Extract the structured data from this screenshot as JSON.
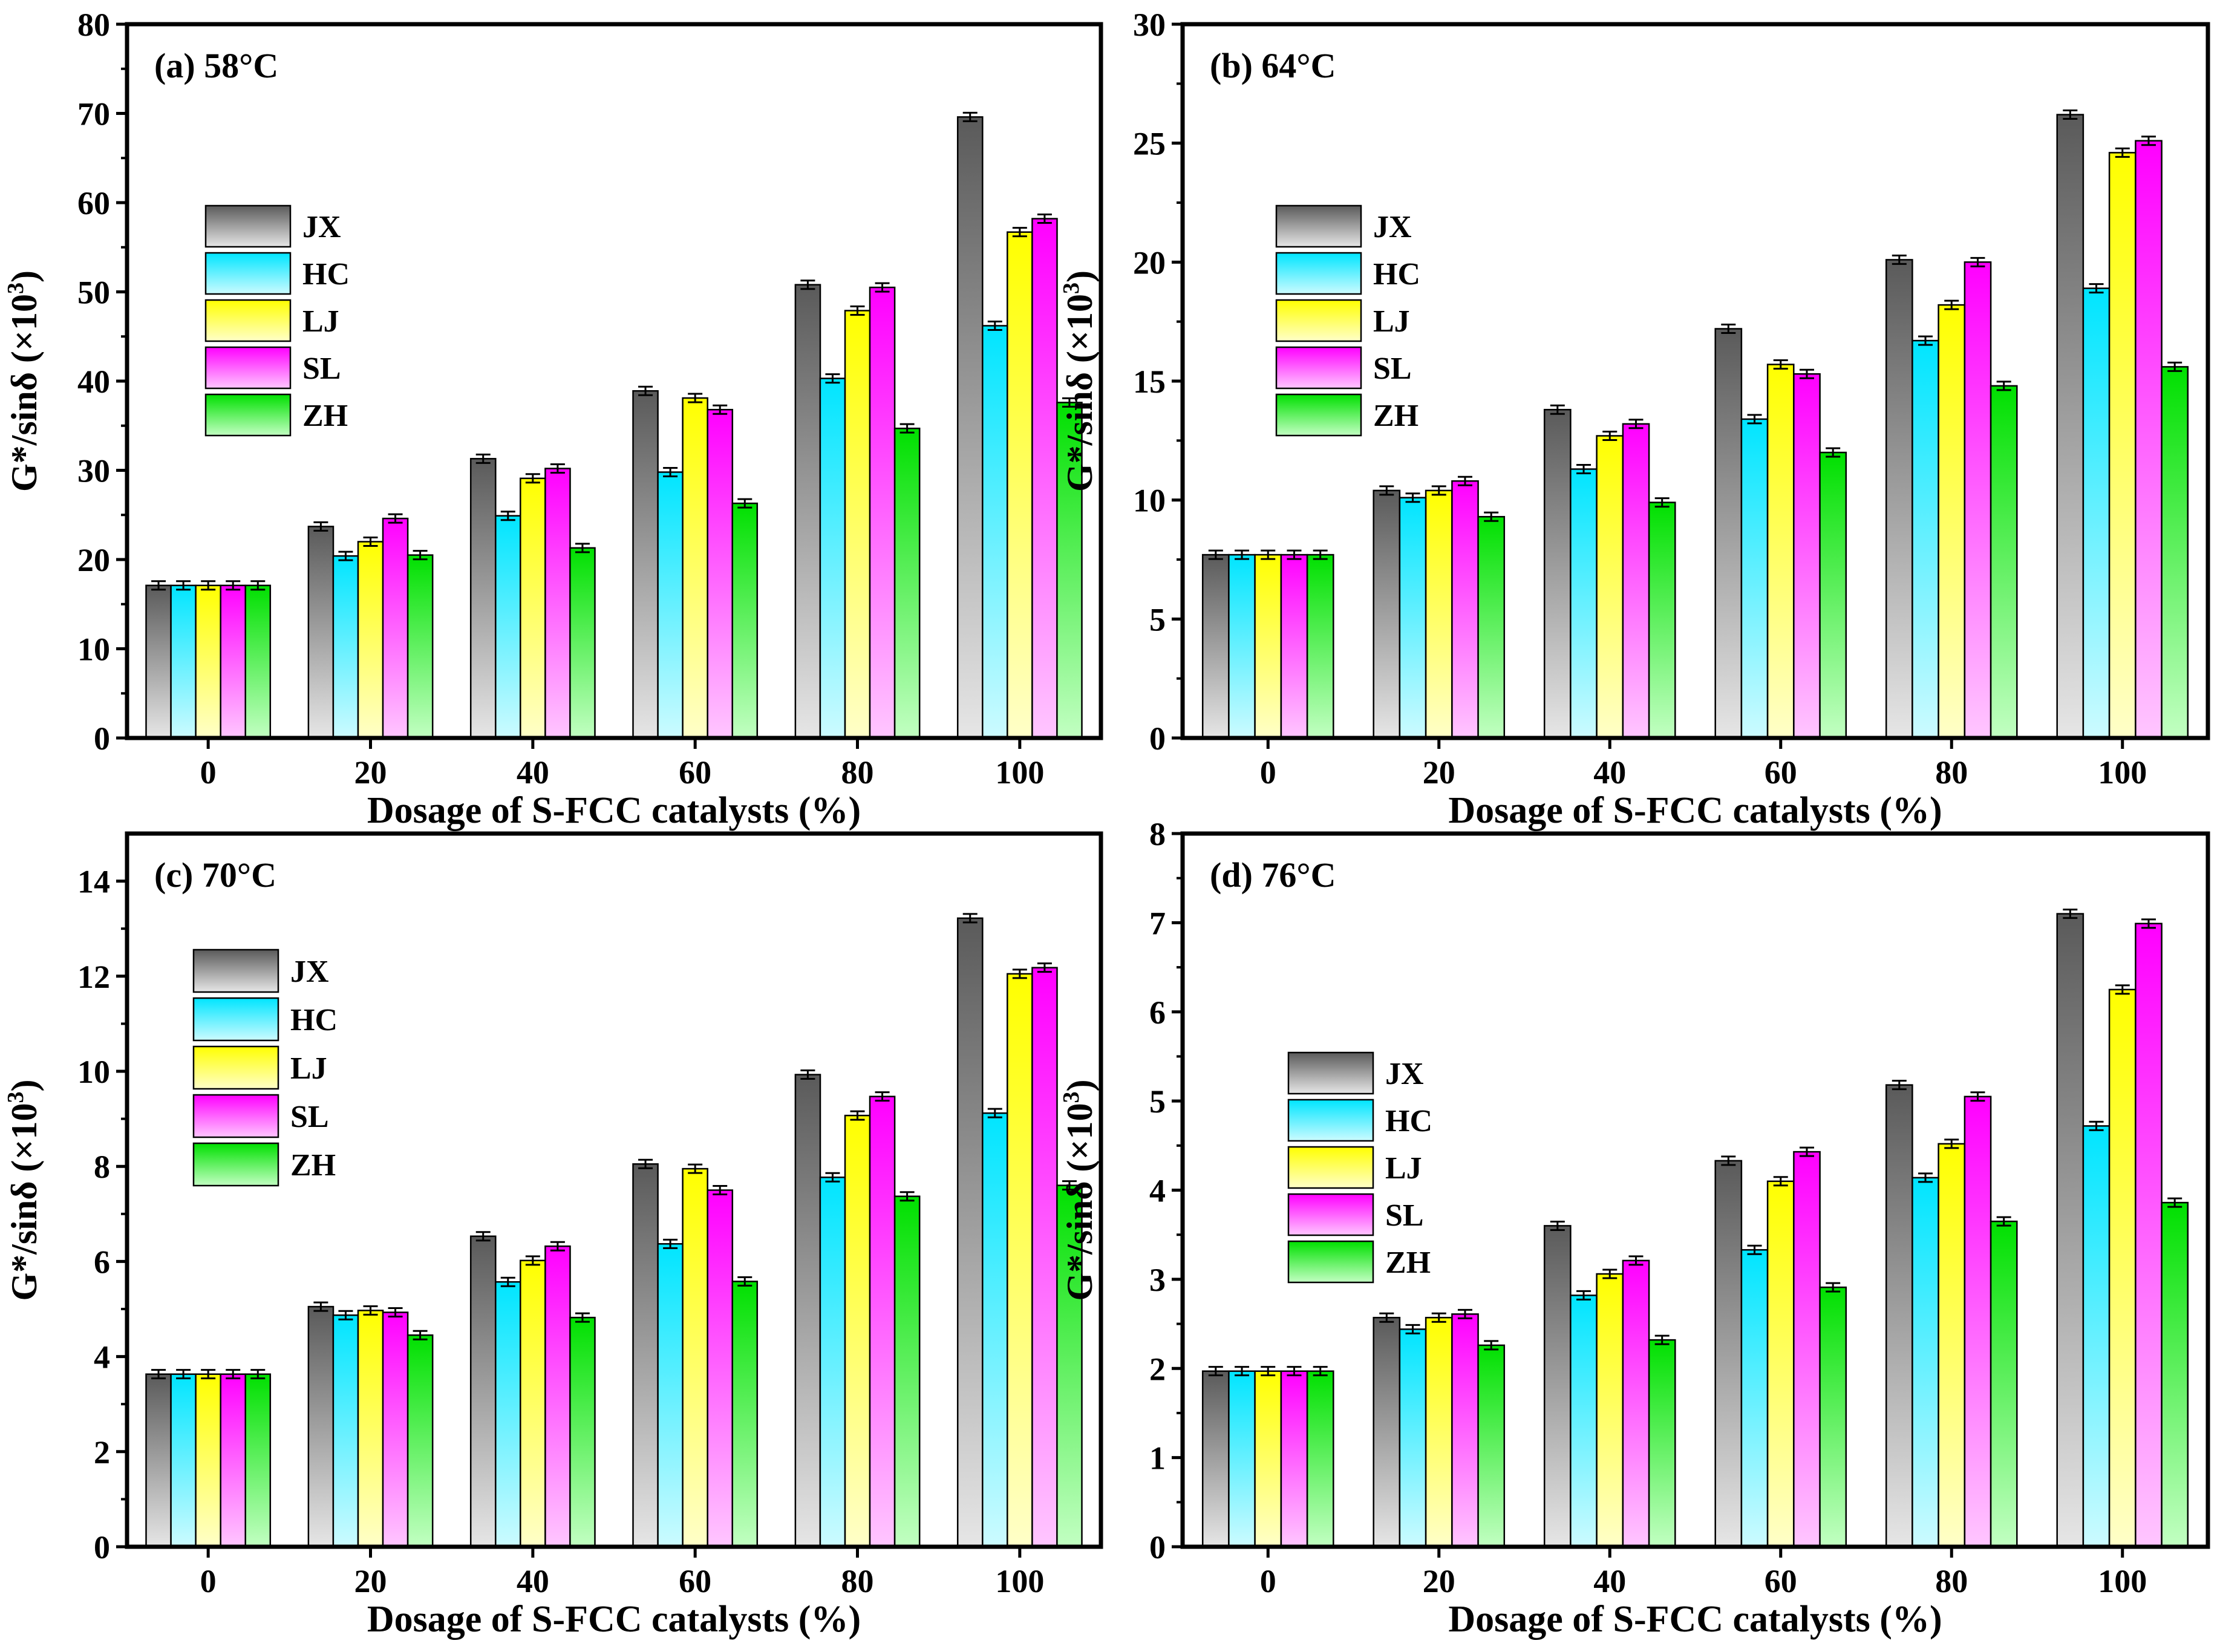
{
  "series_styles": [
    {
      "name": "JX",
      "top": "#5a5a5a",
      "bottom": "#e6e6e6"
    },
    {
      "name": "HC",
      "top": "#00e5ff",
      "bottom": "#ccfbff"
    },
    {
      "name": "LJ",
      "top": "#ffff00",
      "bottom": "#ffffc8"
    },
    {
      "name": "SL",
      "top": "#ff00ff",
      "bottom": "#ffc6ff"
    },
    {
      "name": "ZH",
      "top": "#00e000",
      "bottom": "#c2ffc2"
    }
  ],
  "chart_data": [
    {
      "type": "bar",
      "title": "(a) 58°C",
      "xlabel": "Dosage of S-FCC catalysts (%)",
      "ylabel": "G*/sinδ (×10³)",
      "ylabel_base": "G*/sinδ (×10",
      "ylabel_exp": "3",
      "ylabel_end": ")",
      "categories": [
        "0",
        "20",
        "40",
        "60",
        "80",
        "100"
      ],
      "ylim": [
        0,
        80
      ],
      "yticks": [
        0,
        10,
        20,
        30,
        40,
        50,
        60,
        70,
        80
      ],
      "legend_position": "upper-left",
      "series": [
        {
          "name": "JX",
          "values": [
            17.1,
            23.7,
            31.3,
            38.9,
            50.8,
            69.6
          ]
        },
        {
          "name": "HC",
          "values": [
            17.1,
            20.4,
            24.9,
            29.8,
            40.3,
            46.2
          ]
        },
        {
          "name": "LJ",
          "values": [
            17.1,
            22.0,
            29.1,
            38.1,
            47.9,
            56.7
          ]
        },
        {
          "name": "SL",
          "values": [
            17.1,
            24.6,
            30.2,
            36.8,
            50.5,
            58.2
          ]
        },
        {
          "name": "ZH",
          "values": [
            17.1,
            20.5,
            21.3,
            26.3,
            34.7,
            37.6
          ]
        }
      ]
    },
    {
      "type": "bar",
      "title": "(b) 64°C",
      "xlabel": "Dosage of S-FCC catalysts (%)",
      "ylabel": "G*/sinδ (×10³)",
      "ylabel_base": "G*/sinδ (×10",
      "ylabel_exp": "3",
      "ylabel_end": ")",
      "categories": [
        "0",
        "20",
        "40",
        "60",
        "80",
        "100"
      ],
      "ylim": [
        0,
        30
      ],
      "yticks": [
        0,
        5,
        10,
        15,
        20,
        25,
        30
      ],
      "legend_position": "upper-left",
      "series": [
        {
          "name": "JX",
          "values": [
            7.7,
            10.4,
            13.8,
            17.2,
            20.1,
            26.2
          ]
        },
        {
          "name": "HC",
          "values": [
            7.7,
            10.1,
            11.3,
            13.4,
            16.7,
            18.9
          ]
        },
        {
          "name": "LJ",
          "values": [
            7.7,
            10.4,
            12.7,
            15.7,
            18.2,
            24.6
          ]
        },
        {
          "name": "SL",
          "values": [
            7.7,
            10.8,
            13.2,
            15.3,
            20.0,
            25.1
          ]
        },
        {
          "name": "ZH",
          "values": [
            7.7,
            9.3,
            9.9,
            12.0,
            14.8,
            15.6
          ]
        }
      ]
    },
    {
      "type": "bar",
      "title": "(c) 70°C",
      "xlabel": "Dosage of S-FCC catalysts (%)",
      "ylabel": "G*/sinδ (×10³)",
      "ylabel_base": "G*/sinδ (×10",
      "ylabel_exp": "3",
      "ylabel_end": ")",
      "categories": [
        "0",
        "20",
        "40",
        "60",
        "80",
        "100"
      ],
      "ylim": [
        0,
        15
      ],
      "yticks": [
        0,
        2,
        4,
        6,
        8,
        10,
        12,
        14
      ],
      "legend_position": "upper-left",
      "series": [
        {
          "name": "JX",
          "values": [
            3.63,
            5.05,
            6.53,
            8.05,
            9.93,
            13.22
          ]
        },
        {
          "name": "HC",
          "values": [
            3.63,
            4.87,
            5.57,
            6.37,
            7.77,
            9.12
          ]
        },
        {
          "name": "LJ",
          "values": [
            3.63,
            4.97,
            6.02,
            7.95,
            9.07,
            12.05
          ]
        },
        {
          "name": "SL",
          "values": [
            3.63,
            4.93,
            6.32,
            7.5,
            9.47,
            12.18
          ]
        },
        {
          "name": "ZH",
          "values": [
            3.63,
            4.45,
            4.82,
            5.58,
            7.37,
            7.6
          ]
        }
      ]
    },
    {
      "type": "bar",
      "title": "(d) 76°C",
      "xlabel": "Dosage of S-FCC catalysts (%)",
      "ylabel": "G*/sinδ (×10³)",
      "ylabel_base": "G*/sinδ (×10",
      "ylabel_exp": "3",
      "ylabel_end": ")",
      "categories": [
        "0",
        "20",
        "40",
        "60",
        "80",
        "100"
      ],
      "ylim": [
        0,
        8
      ],
      "yticks": [
        0,
        1,
        2,
        3,
        4,
        5,
        6,
        7,
        8
      ],
      "legend_position": "upper-left",
      "series": [
        {
          "name": "JX",
          "values": [
            1.97,
            2.57,
            3.6,
            4.33,
            5.18,
            7.1
          ]
        },
        {
          "name": "HC",
          "values": [
            1.97,
            2.44,
            2.82,
            3.33,
            4.14,
            4.72
          ]
        },
        {
          "name": "LJ",
          "values": [
            1.97,
            2.57,
            3.06,
            4.1,
            4.52,
            6.25
          ]
        },
        {
          "name": "SL",
          "values": [
            1.97,
            2.61,
            3.21,
            4.43,
            5.05,
            6.99
          ]
        },
        {
          "name": "ZH",
          "values": [
            1.97,
            2.26,
            2.32,
            2.91,
            3.65,
            3.86
          ]
        }
      ]
    }
  ]
}
